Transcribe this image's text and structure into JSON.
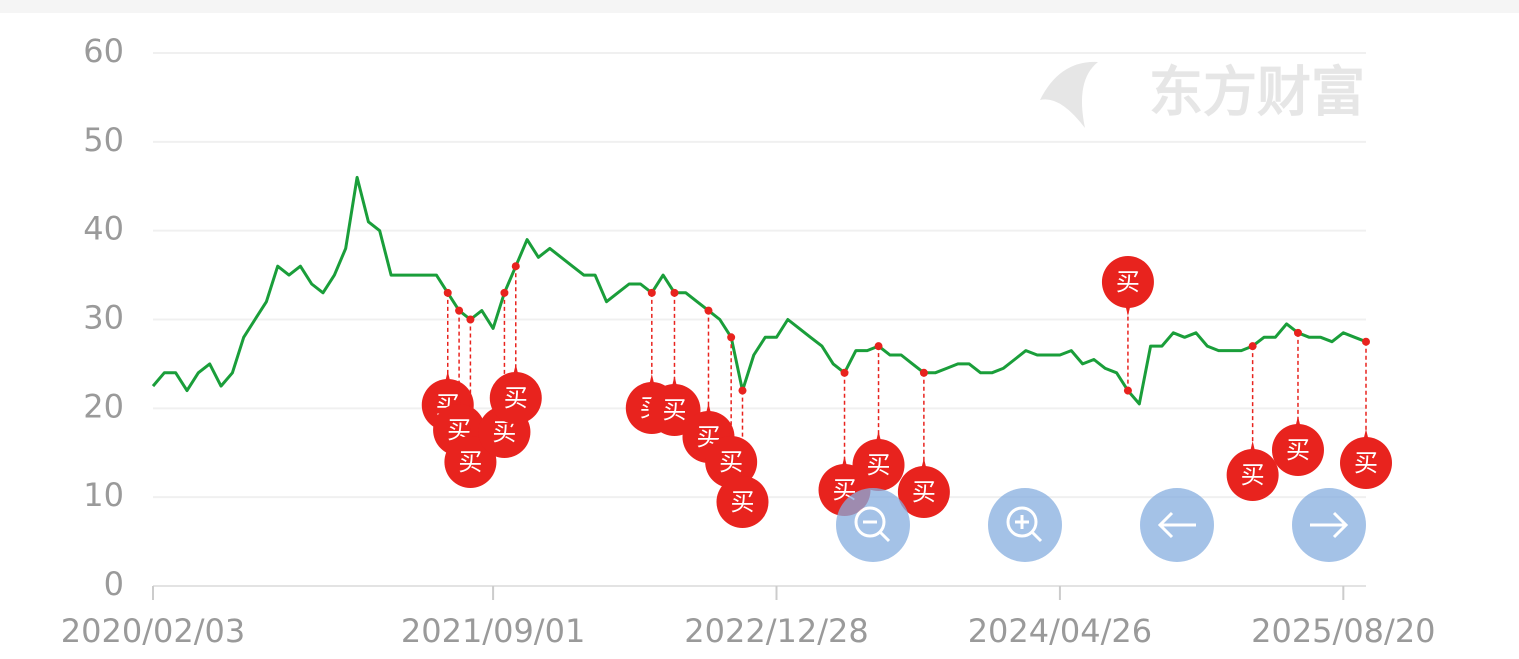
{
  "chart_data": {
    "type": "line",
    "watermark": "东方财富",
    "categories": [
      "2020/02/03",
      null,
      null,
      null,
      null,
      null,
      null,
      null,
      null,
      null,
      null,
      null,
      null,
      null,
      null,
      null,
      null,
      null,
      null,
      null,
      null,
      null,
      null,
      null,
      null,
      null,
      null,
      null,
      null,
      null,
      "2021/09/01",
      null,
      null,
      null,
      null,
      null,
      null,
      null,
      null,
      null,
      null,
      null,
      null,
      null,
      null,
      null,
      null,
      null,
      null,
      null,
      null,
      null,
      null,
      null,
      null,
      "2022/12/28",
      null,
      null,
      null,
      null,
      null,
      null,
      null,
      null,
      null,
      null,
      null,
      null,
      null,
      null,
      null,
      null,
      null,
      null,
      null,
      null,
      null,
      null,
      null,
      null,
      "2024/04/26",
      null,
      null,
      null,
      null,
      null,
      null,
      null,
      null,
      null,
      null,
      null,
      null,
      null,
      null,
      null,
      null,
      null,
      null,
      null,
      null,
      null,
      null,
      null,
      null,
      "2025/08/20",
      null,
      null
    ],
    "values": [
      22.5,
      24,
      24,
      22,
      24,
      25,
      22.5,
      24,
      28,
      30,
      32,
      36,
      35,
      36,
      34,
      33,
      35,
      38,
      46,
      41,
      40,
      35,
      35,
      35,
      35,
      35,
      33,
      31,
      30,
      31,
      29,
      33,
      36,
      39,
      37,
      38,
      37,
      36,
      35,
      35,
      32,
      33,
      34,
      34,
      33,
      35,
      33,
      33,
      32,
      31,
      30,
      28,
      22,
      26,
      28,
      28,
      30,
      29,
      28,
      27,
      25,
      24,
      26.5,
      26.5,
      27,
      26,
      26,
      25,
      24,
      24,
      24.5,
      25,
      25,
      24,
      24,
      24.5,
      25.5,
      26.5,
      26,
      26,
      26,
      26.5,
      25,
      25.5,
      24.5,
      24,
      22,
      20.5,
      27,
      27,
      28.5,
      28,
      28.5,
      27,
      26.5,
      26.5,
      26.5,
      27,
      28,
      28,
      29.5,
      28.5,
      28,
      28,
      27.5,
      28.5,
      28,
      27.5
    ],
    "color": "#1a9e3a",
    "ylim": [
      0,
      60
    ],
    "yticks": [
      0,
      10,
      20,
      30,
      40,
      50,
      60
    ],
    "grid": true,
    "signals": [
      {
        "index": 26,
        "label": "买"
      },
      {
        "index": 27,
        "label": "买"
      },
      {
        "index": 28,
        "label": "买"
      },
      {
        "index": 31,
        "label": "买"
      },
      {
        "index": 32,
        "label": "买"
      },
      {
        "index": 44,
        "label": "买"
      },
      {
        "index": 46,
        "label": "买"
      },
      {
        "index": 49,
        "label": "买"
      },
      {
        "index": 51,
        "label": "买"
      },
      {
        "index": 52,
        "label": "买"
      },
      {
        "index": 61,
        "label": "买"
      },
      {
        "index": 64,
        "label": "买"
      },
      {
        "index": 68,
        "label": "买"
      },
      {
        "index": 86,
        "label": "买"
      },
      {
        "index": 97,
        "label": "买"
      },
      {
        "index": 101,
        "label": "买"
      },
      {
        "index": 107,
        "label": "买"
      }
    ]
  }
}
